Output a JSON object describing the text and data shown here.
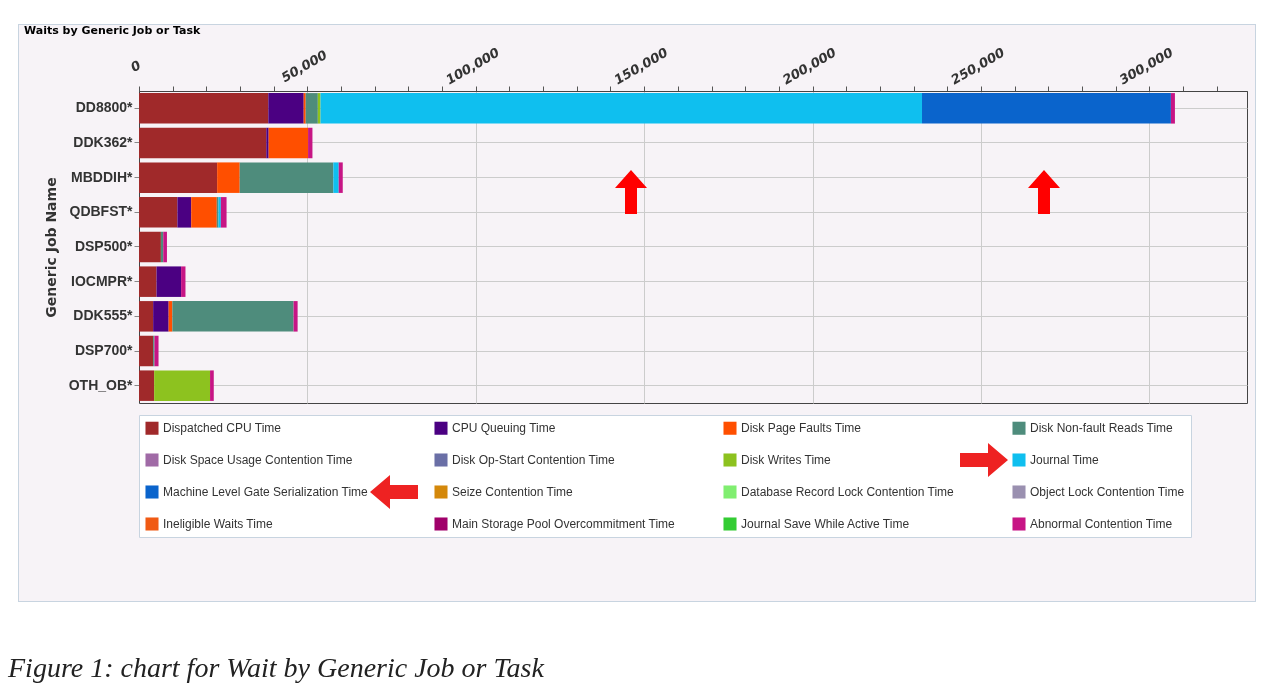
{
  "chart_data": {
    "type": "bar",
    "orientation": "horizontal",
    "stacked": true,
    "title": "Waits by Generic Job or Task",
    "ylabel": "Generic Job Name",
    "categories": [
      "DD8800*",
      "DDK362*",
      "MBDDIH*",
      "QDBFST*",
      "DSP500*",
      "IOCMPR*",
      "DDK555*",
      "DSP700*",
      "OTH_OB*"
    ],
    "series": [
      {
        "name": "Dispatched CPU Time",
        "color": "#a0292a",
        "values": [
          38400,
          37800,
          23200,
          11400,
          6500,
          5200,
          4200,
          4200,
          4500
        ]
      },
      {
        "name": "CPU Queuing Time",
        "color": "#4b0082",
        "values": [
          10500,
          700,
          null,
          4100,
          null,
          7300,
          4600,
          null,
          null
        ]
      },
      {
        "name": "Disk Page Faults Time",
        "color": "#ff4f00",
        "values": [
          600,
          11700,
          6700,
          7600,
          null,
          null,
          1100,
          null,
          null
        ]
      },
      {
        "name": "Disk Non-fault Reads Time",
        "color": "#4e8c7c",
        "values": [
          3600,
          null,
          27800,
          500,
          700,
          null,
          36000,
          400,
          null
        ]
      },
      {
        "name": "Disk Space Usage Contention Time",
        "color": "#a06aa6",
        "values": [
          null,
          null,
          null,
          null,
          null,
          null,
          null,
          null,
          null
        ]
      },
      {
        "name": "Disk Op-Start Contention Time",
        "color": "#6a6fa6",
        "values": [
          null,
          null,
          null,
          null,
          null,
          null,
          null,
          null,
          null
        ]
      },
      {
        "name": "Disk Writes Time",
        "color": "#8dc21f",
        "values": [
          800,
          null,
          null,
          null,
          null,
          null,
          null,
          null,
          16600
        ]
      },
      {
        "name": "Journal Time",
        "color": "#0fbfef",
        "values": [
          178600,
          null,
          1600,
          700,
          null,
          null,
          null,
          null,
          null
        ]
      },
      {
        "name": "Machine Level Gate Serialization Time",
        "color": "#0a64cc",
        "values": [
          73900,
          null,
          null,
          null,
          null,
          null,
          null,
          null,
          null
        ]
      },
      {
        "name": "Seize Contention Time",
        "color": "#d4880a",
        "values": [
          null,
          null,
          null,
          null,
          null,
          null,
          null,
          null,
          null
        ]
      },
      {
        "name": "Database Record Lock Contention Time",
        "color": "#80ee70",
        "values": [
          null,
          null,
          null,
          null,
          null,
          null,
          null,
          null,
          null
        ]
      },
      {
        "name": "Object Lock Contention Time",
        "color": "#9a90b0",
        "values": [
          null,
          null,
          null,
          null,
          null,
          null,
          null,
          null,
          null
        ]
      },
      {
        "name": "Ineligible Waits Time",
        "color": "#f05a14",
        "values": [
          null,
          null,
          null,
          null,
          null,
          null,
          null,
          null,
          null
        ]
      },
      {
        "name": "Main Storage Pool Overcommitment Time",
        "color": "#a0006a",
        "values": [
          null,
          null,
          null,
          null,
          null,
          null,
          null,
          null,
          null
        ]
      },
      {
        "name": "Journal Save While Active Time",
        "color": "#33cc33",
        "values": [
          null,
          null,
          null,
          null,
          null,
          null,
          null,
          null,
          null
        ]
      },
      {
        "name": "Abnormal Contention Time",
        "color": "#c71585",
        "values": [
          1200,
          1300,
          1200,
          1700,
          1100,
          1300,
          1200,
          1200,
          1100
        ]
      }
    ],
    "xlim": [
      0,
      329000
    ],
    "xticks": [
      0,
      {
        "value": 10000,
        "label": null
      },
      {
        "value": 20000,
        "label": null
      },
      {
        "value": 30000,
        "label": null
      },
      {
        "value": 40000,
        "label": null
      },
      {
        "value": 50000,
        "label": "50,000"
      },
      {
        "value": 60000,
        "label": null
      },
      {
        "value": 70000,
        "label": null
      },
      {
        "value": 80000,
        "label": null
      },
      {
        "value": 90000,
        "label": null
      },
      {
        "value": 100000,
        "label": "100,000"
      },
      {
        "value": 110000,
        "label": null
      },
      {
        "value": 120000,
        "label": null
      },
      {
        "value": 130000,
        "label": null
      },
      {
        "value": 140000,
        "label": null
      },
      {
        "value": 150000,
        "label": "150,000"
      },
      {
        "value": 160000,
        "label": null
      },
      {
        "value": 170000,
        "label": null
      },
      {
        "value": 180000,
        "label": null
      },
      {
        "value": 190000,
        "label": null
      },
      {
        "value": 200000,
        "label": "200,000"
      },
      {
        "value": 210000,
        "label": null
      },
      {
        "value": 220000,
        "label": null
      },
      {
        "value": 230000,
        "label": null
      },
      {
        "value": 240000,
        "label": null
      },
      {
        "value": 250000,
        "label": "250,000"
      },
      {
        "value": 260000,
        "label": null
      },
      {
        "value": 270000,
        "label": null
      },
      {
        "value": 280000,
        "label": null
      },
      {
        "value": 290000,
        "label": null
      },
      {
        "value": 300000,
        "label": "300,000"
      },
      {
        "value": 310000,
        "label": null
      },
      {
        "value": 320000,
        "label": null
      }
    ],
    "grid": true,
    "legend": "bottom",
    "annotations": [
      "Figure 1: chart for Wait by Generic Job or Task"
    ]
  }
}
